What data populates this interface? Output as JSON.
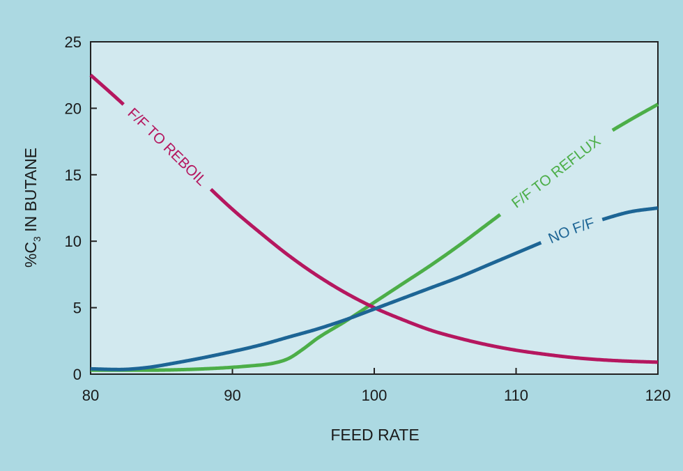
{
  "chart_data": {
    "type": "line",
    "title": "",
    "xlabel": "FEED RATE",
    "ylabel": {
      "prefix": "%C",
      "subscript": "3",
      "suffix": " IN BUTANE"
    },
    "xlim": [
      80,
      120
    ],
    "ylim": [
      0,
      25
    ],
    "xticks": [
      80,
      90,
      100,
      110,
      120
    ],
    "yticks": [
      0,
      5,
      10,
      15,
      20,
      25
    ],
    "grid": false,
    "series": [
      {
        "name": "F/F TO REBOIL",
        "color": "#b5175f",
        "label_at": [
          82.3,
          88.5
        ],
        "x": [
          80,
          82,
          84,
          86,
          88,
          90,
          92,
          94,
          96,
          98,
          100,
          102,
          104,
          106,
          108,
          110,
          112,
          114,
          116,
          118,
          120
        ],
        "y": [
          22.5,
          20.6,
          18.6,
          16.5,
          14.4,
          12.4,
          10.6,
          8.9,
          7.4,
          6.1,
          5.0,
          4.1,
          3.3,
          2.7,
          2.2,
          1.8,
          1.5,
          1.25,
          1.08,
          0.97,
          0.9
        ]
      },
      {
        "name": "F/F TO REFLUX",
        "color": "#4cae48",
        "label_at": [
          108.9,
          116.8
        ],
        "x": [
          80,
          84,
          88,
          91,
          93,
          94,
          95,
          96,
          98,
          100,
          102,
          104,
          106,
          108,
          110,
          112,
          114,
          116,
          118,
          120
        ],
        "y": [
          0.3,
          0.3,
          0.4,
          0.6,
          0.85,
          1.2,
          1.9,
          2.7,
          4.0,
          5.4,
          6.8,
          8.2,
          9.7,
          11.3,
          12.9,
          14.5,
          16.2,
          17.8,
          19.1,
          20.3
        ]
      },
      {
        "name": "NO F/F",
        "color": "#1d6595",
        "label_at": [
          111.8,
          116.1
        ],
        "x": [
          80,
          82,
          84,
          86,
          88,
          90,
          92,
          94,
          96,
          98,
          100,
          102,
          104,
          106,
          108,
          110,
          112,
          114,
          116,
          118,
          120
        ],
        "y": [
          0.4,
          0.35,
          0.5,
          0.85,
          1.25,
          1.7,
          2.2,
          2.8,
          3.4,
          4.1,
          4.9,
          5.7,
          6.5,
          7.3,
          8.2,
          9.1,
          10.0,
          10.9,
          11.6,
          12.2,
          12.5
        ]
      }
    ]
  }
}
